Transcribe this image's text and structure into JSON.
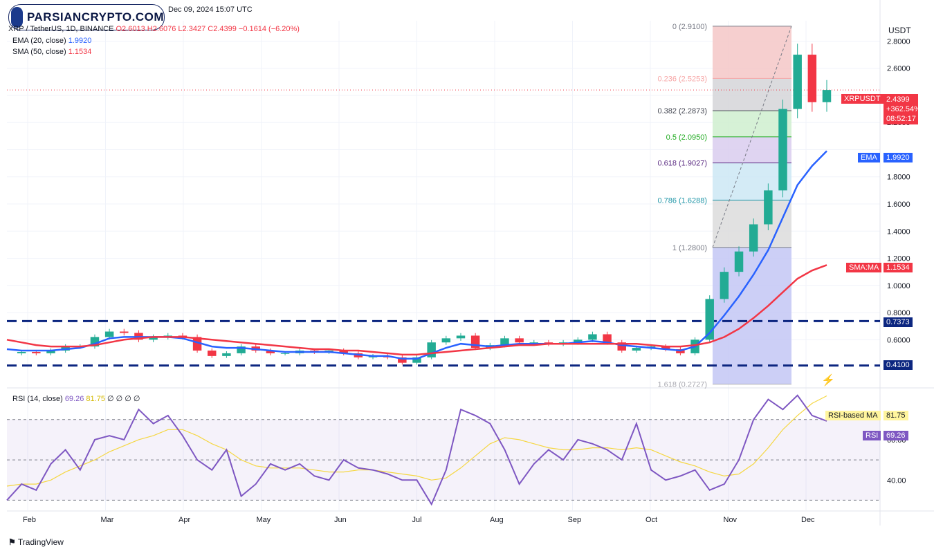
{
  "header": {
    "datetime": "Dec 09, 2024 15:07 UTC",
    "symbol_line": "XRP / TetherUS, 1D, BINANCE",
    "open": "O2.6013",
    "high": "H2.6076",
    "low": "L2.3427",
    "close": "C2.4399",
    "change": "−0.1614 (−6.20%)",
    "ema_label": "EMA (20, close)",
    "ema_value": "1.9920",
    "sma_label": "SMA (50, close)",
    "sma_value": "1.1534"
  },
  "logo": {
    "text": "PARSIANCRYPTO.COM"
  },
  "footer": {
    "brand": "TradingView"
  },
  "price_axis": {
    "currency": "USDT",
    "ticks": [
      "2.8000",
      "2.6000",
      "2.2000",
      "1.8000",
      "1.6000",
      "1.4000",
      "1.2000",
      "1.0000",
      "0.8000",
      "0.6000"
    ]
  },
  "badges": {
    "symbol": "XRPUSDT",
    "price": "2.4399",
    "percent": "+362.54%",
    "countdown": "08:52:17",
    "ema_tag": "EMA",
    "ema_value": "1.9920",
    "sma_tag": "SMA:MA",
    "sma_value": "1.1534",
    "resistance": "0.7373",
    "support": "0.4100"
  },
  "fib_levels": [
    {
      "label": "0 (2.9100)",
      "price": 2.91,
      "color": "#787b86"
    },
    {
      "label": "0.236 (2.5253)",
      "price": 2.5253,
      "color": "#f7a6a6"
    },
    {
      "label": "0.382 (2.2873)",
      "price": 2.2873,
      "color": "#434651"
    },
    {
      "label": "0.5 (2.0950)",
      "price": 2.095,
      "color": "#22ab22"
    },
    {
      "label": "0.618 (1.9027)",
      "price": 1.9027,
      "color": "#5b2c83"
    },
    {
      "label": "0.786 (1.6288)",
      "price": 1.6288,
      "color": "#2196a8"
    },
    {
      "label": "1 (1.2800)",
      "price": 1.28,
      "color": "#787b86"
    },
    {
      "label": "1.618 (0.2727)",
      "price": 0.2727,
      "color": "#a8a8b0"
    }
  ],
  "rsi": {
    "header_label": "RSI (14, close)",
    "value": "69.26",
    "ma_value": "81.75",
    "zeros": "∅ ∅ ∅ ∅",
    "ma_tag": "RSI-based MA",
    "rsi_tag": "RSI",
    "ticks": [
      "60.00",
      "40.00"
    ]
  },
  "x_axis": {
    "labels": [
      "Feb",
      "Mar",
      "Apr",
      "May",
      "Jun",
      "Jul",
      "Aug",
      "Sep",
      "Oct",
      "Nov",
      "Dec"
    ]
  },
  "chart_data": {
    "type": "line",
    "title": "XRP / TetherUS, 1D, BINANCE",
    "ylabel": "USDT",
    "x_month_labels": [
      "Feb",
      "Mar",
      "Apr",
      "May",
      "Jun",
      "Jul",
      "Aug",
      "Sep",
      "Oct",
      "Nov",
      "Dec"
    ],
    "ylim": [
      0.25,
      2.95
    ],
    "series": [
      {
        "name": "XRPUSDT",
        "color": "#22ab94",
        "values": [
          0.5,
          0.51,
          0.5,
          0.52,
          0.55,
          0.55,
          0.62,
          0.66,
          0.65,
          0.6,
          0.62,
          0.63,
          0.62,
          0.52,
          0.48,
          0.5,
          0.55,
          0.52,
          0.5,
          0.5,
          0.52,
          0.51,
          0.52,
          0.5,
          0.47,
          0.48,
          0.47,
          0.43,
          0.47,
          0.58,
          0.61,
          0.63,
          0.54,
          0.56,
          0.61,
          0.58,
          0.58,
          0.57,
          0.58,
          0.6,
          0.64,
          0.58,
          0.52,
          0.54,
          0.55,
          0.53,
          0.5,
          0.6,
          0.9,
          1.1,
          1.25,
          1.45,
          1.7,
          2.3,
          2.7,
          2.35,
          2.44
        ]
      },
      {
        "name": "EMA",
        "color": "#2962ff",
        "values": [
          0.53,
          0.52,
          0.52,
          0.52,
          0.53,
          0.54,
          0.57,
          0.61,
          0.62,
          0.62,
          0.62,
          0.62,
          0.61,
          0.58,
          0.55,
          0.54,
          0.54,
          0.53,
          0.52,
          0.51,
          0.51,
          0.51,
          0.51,
          0.5,
          0.49,
          0.48,
          0.48,
          0.46,
          0.46,
          0.5,
          0.54,
          0.57,
          0.56,
          0.55,
          0.56,
          0.57,
          0.57,
          0.57,
          0.57,
          0.58,
          0.59,
          0.58,
          0.56,
          0.55,
          0.54,
          0.53,
          0.52,
          0.55,
          0.65,
          0.78,
          0.92,
          1.08,
          1.26,
          1.5,
          1.74,
          1.88,
          1.99
        ]
      },
      {
        "name": "SMA",
        "color": "#f23645",
        "values": [
          0.6,
          0.58,
          0.56,
          0.55,
          0.55,
          0.55,
          0.56,
          0.58,
          0.6,
          0.61,
          0.62,
          0.62,
          0.62,
          0.61,
          0.6,
          0.59,
          0.58,
          0.57,
          0.56,
          0.55,
          0.54,
          0.53,
          0.53,
          0.52,
          0.52,
          0.51,
          0.5,
          0.49,
          0.49,
          0.5,
          0.51,
          0.52,
          0.53,
          0.54,
          0.55,
          0.56,
          0.56,
          0.57,
          0.57,
          0.57,
          0.57,
          0.57,
          0.57,
          0.57,
          0.56,
          0.55,
          0.55,
          0.56,
          0.58,
          0.62,
          0.68,
          0.76,
          0.85,
          0.95,
          1.05,
          1.11,
          1.15
        ]
      }
    ],
    "horizontal_levels": [
      0.7373,
      0.41
    ],
    "rsi_series": {
      "name": "RSI",
      "ylim": [
        25,
        85
      ],
      "values": [
        30,
        38,
        35,
        48,
        55,
        45,
        60,
        62,
        60,
        75,
        68,
        72,
        62,
        50,
        45,
        55,
        32,
        38,
        48,
        45,
        48,
        42,
        40,
        50,
        46,
        45,
        43,
        40,
        40,
        28,
        45,
        75,
        72,
        68,
        55,
        38,
        48,
        55,
        50,
        60,
        58,
        55,
        50,
        68,
        45,
        40,
        42,
        45,
        35,
        38,
        50,
        70,
        80,
        75,
        82,
        72,
        69.26
      ],
      "ma_values": [
        37,
        38,
        38,
        40,
        44,
        47,
        50,
        54,
        57,
        60,
        62,
        65,
        65,
        62,
        58,
        55,
        50,
        47,
        46,
        46,
        46,
        45,
        44,
        44,
        45,
        45,
        44,
        43,
        42,
        40,
        41,
        46,
        52,
        58,
        61,
        60,
        58,
        56,
        55,
        55,
        56,
        56,
        55,
        56,
        55,
        52,
        49,
        47,
        44,
        42,
        43,
        48,
        56,
        65,
        72,
        78,
        81.75
      ]
    }
  }
}
